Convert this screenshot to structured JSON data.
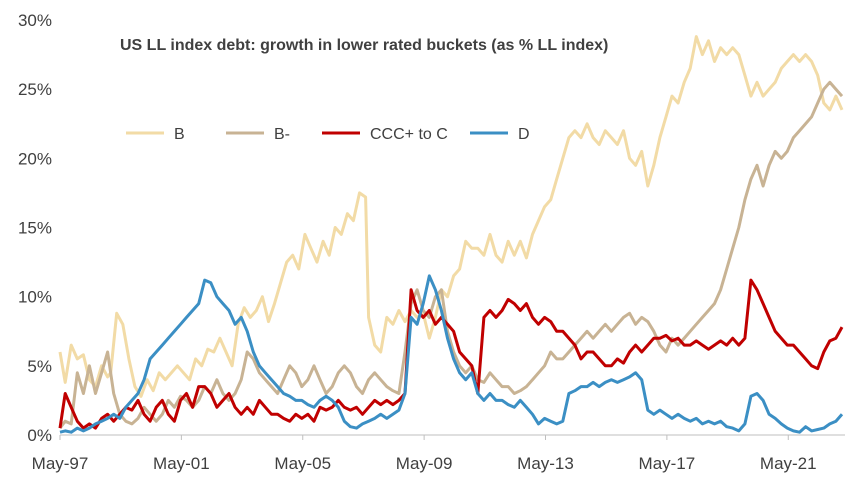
{
  "chart_data": {
    "type": "line",
    "title": "US LL index debt: growth in lower rated buckets (as % LL index)",
    "xlabel": "",
    "ylabel": "",
    "ylim": [
      0,
      30
    ],
    "xlim": [
      1997.33,
      2023.2
    ],
    "yticks": [
      "0%",
      "5%",
      "10%",
      "15%",
      "20%",
      "25%",
      "30%"
    ],
    "ytick_values": [
      0,
      5,
      10,
      15,
      20,
      25,
      30
    ],
    "xticks": [
      "May-97",
      "May-01",
      "May-05",
      "May-09",
      "May-13",
      "May-17",
      "May-21"
    ],
    "xtick_values": [
      1997.33,
      2001.33,
      2005.33,
      2009.33,
      2013.33,
      2017.33,
      2021.33
    ],
    "grid": false,
    "legend_position": "top-left",
    "series": [
      {
        "name": "B",
        "color": "#f2dba6",
        "x": [
          1997.33,
          1997.5,
          1997.7,
          1997.9,
          1998.1,
          1998.3,
          1998.5,
          1998.7,
          1998.9,
          1999.0,
          1999.2,
          1999.4,
          1999.6,
          1999.8,
          2000.0,
          2000.2,
          2000.4,
          2000.6,
          2000.8,
          2001.0,
          2001.2,
          2001.4,
          2001.6,
          2001.8,
          2002.0,
          2002.2,
          2002.4,
          2002.6,
          2002.8,
          2003.0,
          2003.2,
          2003.4,
          2003.6,
          2003.8,
          2004.0,
          2004.2,
          2004.4,
          2004.6,
          2004.8,
          2005.0,
          2005.2,
          2005.4,
          2005.6,
          2005.8,
          2006.0,
          2006.2,
          2006.4,
          2006.6,
          2006.8,
          2007.0,
          2007.2,
          2007.4,
          2007.5,
          2007.7,
          2007.9,
          2008.1,
          2008.3,
          2008.5,
          2008.7,
          2008.9,
          2009.1,
          2009.3,
          2009.5,
          2009.7,
          2009.9,
          2010.1,
          2010.3,
          2010.5,
          2010.7,
          2010.9,
          2011.1,
          2011.3,
          2011.5,
          2011.7,
          2011.9,
          2012.1,
          2012.3,
          2012.5,
          2012.7,
          2012.9,
          2013.1,
          2013.3,
          2013.5,
          2013.7,
          2013.9,
          2014.1,
          2014.3,
          2014.5,
          2014.7,
          2014.9,
          2015.1,
          2015.3,
          2015.5,
          2015.7,
          2015.9,
          2016.1,
          2016.3,
          2016.5,
          2016.7,
          2016.9,
          2017.1,
          2017.3,
          2017.5,
          2017.7,
          2017.9,
          2018.1,
          2018.3,
          2018.5,
          2018.7,
          2018.9,
          2019.1,
          2019.3,
          2019.5,
          2019.7,
          2019.9,
          2020.1,
          2020.3,
          2020.5,
          2020.7,
          2020.9,
          2021.1,
          2021.3,
          2021.5,
          2021.7,
          2021.9,
          2022.1,
          2022.3,
          2022.5,
          2022.7,
          2022.9,
          2023.1
        ],
        "values": [
          6.0,
          3.8,
          6.5,
          5.5,
          5.8,
          4.0,
          3.5,
          5.0,
          4.2,
          4.5,
          8.8,
          8.0,
          5.5,
          3.5,
          2.8,
          4.0,
          3.2,
          4.5,
          4.0,
          4.5,
          5.0,
          4.5,
          4.0,
          5.5,
          5.0,
          6.2,
          6.0,
          7.0,
          6.0,
          5.0,
          8.0,
          9.2,
          8.5,
          9.0,
          10.0,
          8.2,
          9.5,
          11.0,
          12.5,
          13.0,
          12.0,
          14.5,
          13.5,
          12.5,
          14.0,
          13.0,
          15.0,
          14.5,
          16.0,
          15.5,
          17.5,
          17.2,
          8.5,
          6.5,
          6.0,
          8.5,
          8.0,
          9.0,
          8.2,
          9.0,
          8.5,
          8.8,
          7.0,
          8.5,
          10.5,
          10.0,
          11.5,
          12.0,
          14.0,
          13.5,
          13.5,
          13.0,
          14.5,
          13.0,
          12.5,
          14.0,
          13.0,
          14.0,
          12.8,
          14.5,
          15.5,
          16.5,
          17.0,
          18.5,
          20.0,
          21.5,
          22.0,
          21.5,
          22.5,
          21.5,
          21.0,
          22.0,
          21.5,
          21.0,
          22.0,
          20.0,
          19.5,
          20.5,
          18.0,
          19.5,
          21.5,
          23.0,
          24.5,
          24.0,
          25.5,
          26.5,
          28.8,
          27.5,
          28.5,
          27.0,
          28.0,
          27.5,
          28.0,
          27.5,
          26.0,
          24.5,
          25.5,
          24.5,
          25.0,
          25.5,
          26.5,
          27.0,
          27.5,
          27.0,
          27.5,
          27.0,
          26.0,
          24.0,
          23.5,
          24.5,
          23.5
        ]
      },
      {
        "name": "B-",
        "color": "#c8b394",
        "x": [
          1997.33,
          1997.5,
          1997.7,
          1997.9,
          1998.1,
          1998.3,
          1998.5,
          1998.7,
          1998.9,
          1999.1,
          1999.3,
          1999.5,
          1999.7,
          1999.9,
          2000.1,
          2000.3,
          2000.5,
          2000.7,
          2000.9,
          2001.1,
          2001.3,
          2001.5,
          2001.7,
          2001.9,
          2002.1,
          2002.3,
          2002.5,
          2002.7,
          2002.9,
          2003.1,
          2003.3,
          2003.5,
          2003.7,
          2003.9,
          2004.1,
          2004.3,
          2004.5,
          2004.7,
          2004.9,
          2005.1,
          2005.3,
          2005.5,
          2005.7,
          2005.9,
          2006.1,
          2006.3,
          2006.5,
          2006.7,
          2006.9,
          2007.1,
          2007.3,
          2007.5,
          2007.7,
          2007.9,
          2008.1,
          2008.3,
          2008.5,
          2008.7,
          2008.9,
          2009.1,
          2009.3,
          2009.5,
          2009.7,
          2009.9,
          2010.1,
          2010.3,
          2010.5,
          2010.7,
          2010.9,
          2011.1,
          2011.3,
          2011.5,
          2011.7,
          2011.9,
          2012.1,
          2012.3,
          2012.5,
          2012.7,
          2012.9,
          2013.1,
          2013.3,
          2013.5,
          2013.7,
          2013.9,
          2014.1,
          2014.3,
          2014.5,
          2014.7,
          2014.9,
          2015.1,
          2015.3,
          2015.5,
          2015.7,
          2015.9,
          2016.1,
          2016.3,
          2016.5,
          2016.7,
          2016.9,
          2017.1,
          2017.3,
          2017.5,
          2017.7,
          2017.9,
          2018.1,
          2018.3,
          2018.5,
          2018.7,
          2018.9,
          2019.1,
          2019.3,
          2019.5,
          2019.7,
          2019.9,
          2020.1,
          2020.3,
          2020.5,
          2020.7,
          2020.9,
          2021.1,
          2021.3,
          2021.5,
          2021.7,
          2021.9,
          2022.1,
          2022.3,
          2022.5,
          2022.7,
          2022.9,
          2023.1
        ],
        "values": [
          0.5,
          1.0,
          0.8,
          4.5,
          3.0,
          5.0,
          3.0,
          4.5,
          6.0,
          3.0,
          1.5,
          1.0,
          0.8,
          1.2,
          2.0,
          1.5,
          1.0,
          1.5,
          2.5,
          2.0,
          2.8,
          2.5,
          2.0,
          2.5,
          3.5,
          3.0,
          4.0,
          3.0,
          2.5,
          3.0,
          4.0,
          6.0,
          5.5,
          4.5,
          4.0,
          3.5,
          3.0,
          4.0,
          5.0,
          4.5,
          3.5,
          4.0,
          5.0,
          4.0,
          3.0,
          3.5,
          4.5,
          5.0,
          4.5,
          3.5,
          3.0,
          4.0,
          4.5,
          4.0,
          3.5,
          3.2,
          3.0,
          6.0,
          9.5,
          10.5,
          9.0,
          8.5,
          10.0,
          10.5,
          7.5,
          6.0,
          5.0,
          4.5,
          5.0,
          4.0,
          3.8,
          4.5,
          4.0,
          3.5,
          3.5,
          3.0,
          3.2,
          3.5,
          4.0,
          4.5,
          5.0,
          6.0,
          5.5,
          5.5,
          6.0,
          6.5,
          7.0,
          7.5,
          7.0,
          7.5,
          8.0,
          7.5,
          8.0,
          8.5,
          8.8,
          8.0,
          8.5,
          8.2,
          7.5,
          6.5,
          6.0,
          7.0,
          6.5,
          7.0,
          7.5,
          8.0,
          8.5,
          9.0,
          9.5,
          10.5,
          12.0,
          13.5,
          15.0,
          17.0,
          18.5,
          19.5,
          18.0,
          19.5,
          20.5,
          20.0,
          20.5,
          21.5,
          22.0,
          22.5,
          23.0,
          24.0,
          25.0,
          25.5,
          25.0,
          24.5
        ]
      },
      {
        "name": "CCC+ to C",
        "color": "#c00000",
        "x": [
          1997.33,
          1997.5,
          1997.7,
          1997.9,
          1998.1,
          1998.3,
          1998.5,
          1998.7,
          1998.9,
          1999.1,
          1999.3,
          1999.5,
          1999.7,
          1999.9,
          2000.1,
          2000.3,
          2000.5,
          2000.7,
          2000.9,
          2001.1,
          2001.3,
          2001.5,
          2001.7,
          2001.9,
          2002.1,
          2002.3,
          2002.5,
          2002.7,
          2002.9,
          2003.1,
          2003.3,
          2003.5,
          2003.7,
          2003.9,
          2004.1,
          2004.3,
          2004.5,
          2004.7,
          2004.9,
          2005.1,
          2005.3,
          2005.5,
          2005.7,
          2005.9,
          2006.1,
          2006.3,
          2006.5,
          2006.7,
          2006.9,
          2007.1,
          2007.3,
          2007.5,
          2007.7,
          2007.9,
          2008.1,
          2008.3,
          2008.5,
          2008.7,
          2008.9,
          2009.1,
          2009.3,
          2009.5,
          2009.7,
          2009.9,
          2010.1,
          2010.3,
          2010.5,
          2010.7,
          2010.9,
          2011.1,
          2011.3,
          2011.5,
          2011.7,
          2011.9,
          2012.1,
          2012.3,
          2012.5,
          2012.7,
          2012.9,
          2013.1,
          2013.3,
          2013.5,
          2013.7,
          2013.9,
          2014.1,
          2014.3,
          2014.5,
          2014.7,
          2014.9,
          2015.1,
          2015.3,
          2015.5,
          2015.7,
          2015.9,
          2016.1,
          2016.3,
          2016.5,
          2016.7,
          2016.9,
          2017.1,
          2017.3,
          2017.5,
          2017.7,
          2017.9,
          2018.1,
          2018.3,
          2018.5,
          2018.7,
          2018.9,
          2019.1,
          2019.3,
          2019.5,
          2019.7,
          2019.9,
          2020.1,
          2020.3,
          2020.5,
          2020.7,
          2020.9,
          2021.1,
          2021.3,
          2021.5,
          2021.7,
          2021.9,
          2022.1,
          2022.3,
          2022.5,
          2022.7,
          2022.9,
          2023.1
        ],
        "values": [
          0.5,
          3.0,
          2.0,
          1.0,
          0.5,
          0.8,
          0.5,
          1.2,
          1.5,
          1.0,
          1.5,
          2.0,
          1.8,
          2.5,
          1.5,
          1.0,
          2.0,
          2.5,
          1.5,
          1.0,
          2.5,
          3.0,
          2.0,
          3.5,
          3.5,
          3.0,
          2.0,
          2.5,
          3.0,
          2.0,
          1.5,
          2.0,
          1.5,
          2.5,
          2.0,
          1.5,
          1.5,
          1.2,
          1.0,
          1.5,
          1.2,
          1.5,
          1.0,
          2.0,
          1.8,
          2.0,
          2.5,
          2.0,
          1.8,
          2.0,
          1.5,
          2.0,
          2.5,
          2.2,
          2.5,
          2.2,
          2.5,
          3.0,
          10.5,
          9.0,
          8.5,
          9.0,
          8.0,
          8.5,
          8.0,
          7.5,
          6.0,
          5.5,
          5.0,
          3.0,
          8.5,
          9.0,
          8.5,
          9.0,
          9.8,
          9.5,
          9.0,
          9.5,
          8.5,
          8.0,
          8.5,
          8.2,
          7.5,
          7.5,
          7.0,
          6.5,
          5.5,
          6.0,
          6.0,
          5.5,
          5.0,
          5.0,
          5.5,
          5.2,
          6.0,
          6.5,
          6.0,
          6.5,
          7.0,
          7.0,
          7.2,
          6.8,
          7.0,
          6.5,
          6.5,
          6.8,
          6.5,
          6.2,
          6.5,
          6.8,
          6.5,
          7.0,
          6.5,
          7.0,
          11.2,
          10.5,
          9.5,
          8.5,
          7.5,
          7.0,
          6.5,
          6.5,
          6.0,
          5.5,
          5.0,
          4.8,
          6.0,
          6.8,
          7.0,
          7.8
        ]
      },
      {
        "name": "D",
        "color": "#3b8fc4",
        "x": [
          1997.33,
          1997.5,
          1997.7,
          1997.9,
          1998.1,
          1998.3,
          1998.5,
          1998.7,
          1998.9,
          1999.1,
          1999.3,
          1999.5,
          1999.7,
          1999.9,
          2000.1,
          2000.3,
          2000.5,
          2000.7,
          2000.9,
          2001.1,
          2001.3,
          2001.5,
          2001.7,
          2001.9,
          2002.1,
          2002.3,
          2002.5,
          2002.7,
          2002.9,
          2003.1,
          2003.3,
          2003.5,
          2003.7,
          2003.9,
          2004.1,
          2004.3,
          2004.5,
          2004.7,
          2004.9,
          2005.1,
          2005.3,
          2005.5,
          2005.7,
          2005.9,
          2006.1,
          2006.3,
          2006.5,
          2006.7,
          2006.9,
          2007.1,
          2007.3,
          2007.5,
          2007.7,
          2007.9,
          2008.1,
          2008.3,
          2008.5,
          2008.7,
          2008.9,
          2009.1,
          2009.3,
          2009.5,
          2009.7,
          2009.9,
          2010.1,
          2010.3,
          2010.5,
          2010.7,
          2010.9,
          2011.1,
          2011.3,
          2011.5,
          2011.7,
          2011.9,
          2012.1,
          2012.3,
          2012.5,
          2012.7,
          2012.9,
          2013.1,
          2013.3,
          2013.5,
          2013.7,
          2013.9,
          2014.1,
          2014.3,
          2014.5,
          2014.7,
          2014.9,
          2015.1,
          2015.3,
          2015.5,
          2015.7,
          2015.9,
          2016.1,
          2016.3,
          2016.5,
          2016.7,
          2016.9,
          2017.1,
          2017.3,
          2017.5,
          2017.7,
          2017.9,
          2018.1,
          2018.3,
          2018.5,
          2018.7,
          2018.9,
          2019.1,
          2019.3,
          2019.5,
          2019.7,
          2019.9,
          2020.1,
          2020.3,
          2020.5,
          2020.7,
          2020.9,
          2021.1,
          2021.3,
          2021.5,
          2021.7,
          2021.9,
          2022.1,
          2022.3,
          2022.5,
          2022.7,
          2022.9,
          2023.1
        ],
        "values": [
          0.2,
          0.3,
          0.2,
          0.5,
          0.3,
          0.5,
          0.8,
          1.0,
          1.2,
          1.5,
          1.2,
          2.0,
          2.5,
          3.0,
          4.0,
          5.5,
          6.0,
          6.5,
          7.0,
          7.5,
          8.0,
          8.5,
          9.0,
          9.5,
          11.2,
          11.0,
          10.0,
          9.5,
          9.0,
          8.0,
          8.5,
          7.5,
          6.0,
          5.0,
          4.5,
          4.0,
          3.5,
          3.0,
          2.8,
          2.5,
          2.5,
          2.2,
          2.0,
          2.5,
          2.8,
          2.5,
          2.0,
          1.0,
          0.6,
          0.5,
          0.8,
          1.0,
          1.2,
          1.5,
          1.2,
          1.5,
          1.8,
          3.0,
          8.5,
          8.0,
          9.5,
          11.5,
          10.5,
          9.0,
          7.0,
          5.5,
          4.5,
          4.0,
          4.5,
          3.0,
          2.5,
          3.0,
          2.5,
          2.5,
          2.2,
          2.0,
          2.5,
          2.0,
          1.5,
          0.8,
          1.2,
          1.0,
          0.8,
          1.0,
          3.0,
          3.2,
          3.5,
          3.5,
          3.8,
          3.5,
          3.8,
          4.0,
          3.8,
          4.0,
          4.2,
          4.5,
          4.0,
          1.8,
          1.5,
          1.8,
          1.5,
          1.2,
          1.5,
          1.2,
          1.0,
          1.2,
          0.8,
          1.0,
          0.8,
          1.0,
          0.6,
          0.5,
          0.3,
          0.8,
          2.8,
          3.0,
          2.5,
          1.5,
          1.2,
          0.8,
          0.5,
          0.3,
          0.2,
          0.6,
          0.3,
          0.4,
          0.5,
          0.8,
          1.0,
          1.5
        ]
      }
    ]
  }
}
